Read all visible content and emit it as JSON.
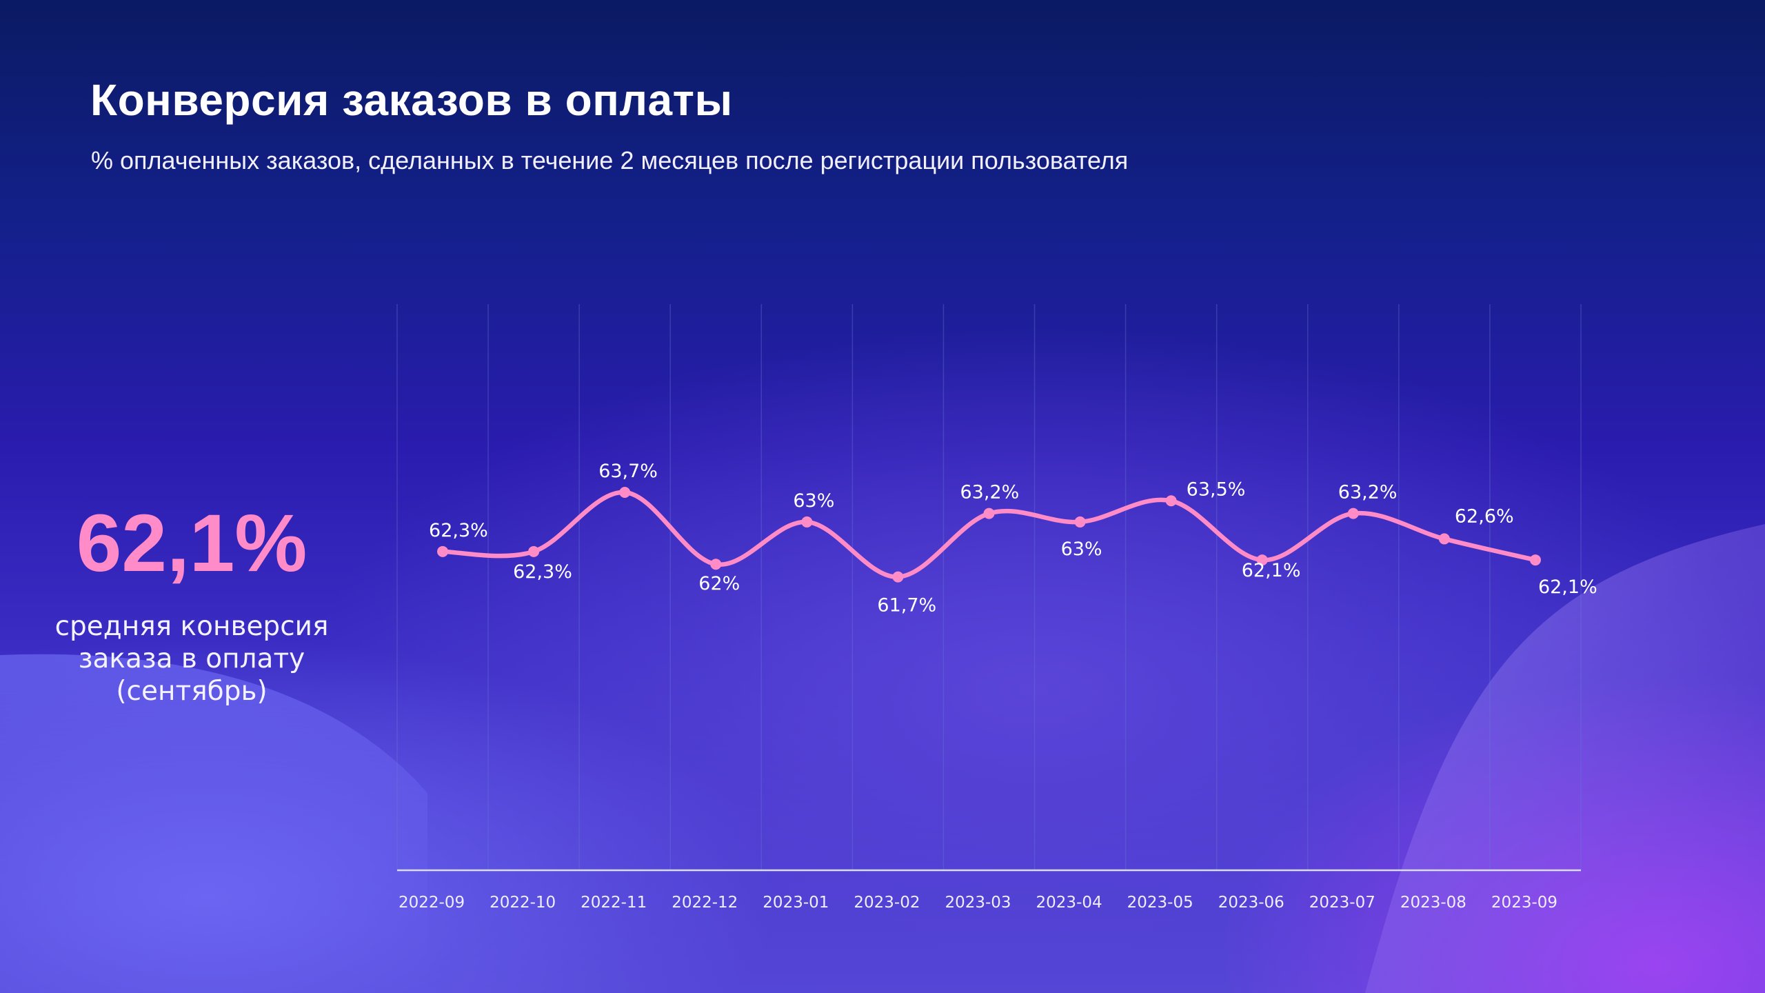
{
  "header": {
    "title": "Конверсия заказов в оплаты",
    "subtitle": "% оплаченных заказов, сделанных в течение 2 месяцев после регистрации пользователя"
  },
  "kpi": {
    "value": "62,1%",
    "caption_lines": [
      "средняя конверсия",
      "заказа в оплату",
      "(сентябрь)"
    ]
  },
  "colors": {
    "line": "#ff8cc6",
    "kpi": "#ff8cc8",
    "background_top": "#0b1a63",
    "background_bottom": "#5446d6"
  },
  "chart_data": {
    "type": "line",
    "title": "",
    "xlabel": "",
    "ylabel": "",
    "categories": [
      "2022-09",
      "2022-10",
      "2022-11",
      "2022-12",
      "2023-01",
      "2023-02",
      "2023-03",
      "2023-04",
      "2023-05",
      "2023-06",
      "2023-07",
      "2023-08",
      "2023-09"
    ],
    "values": [
      62.3,
      62.3,
      63.7,
      62.0,
      63.0,
      61.7,
      63.2,
      63.0,
      63.5,
      62.1,
      63.2,
      62.6,
      62.1
    ],
    "data_labels": [
      "62,3%",
      "62,3%",
      "63,7%",
      "62%",
      "63%",
      "61,7%",
      "63,2%",
      "63%",
      "63,5%",
      "62,1%",
      "63,2%",
      "62,6%",
      "62,1%"
    ],
    "smooth": true,
    "markers": true,
    "grid": "vertical",
    "y_axis_visible": false
  }
}
